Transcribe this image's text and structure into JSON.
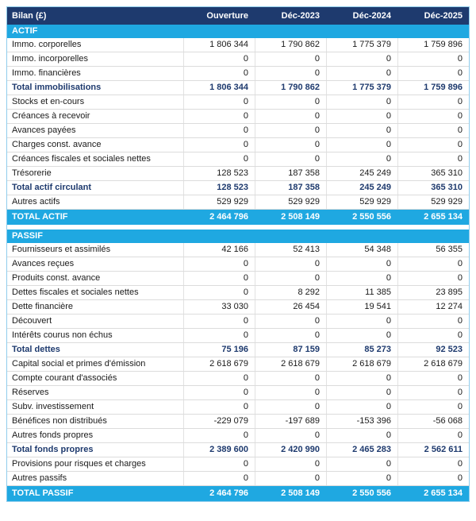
{
  "chart_data": {
    "type": "table",
    "title": "Bilan (£)",
    "columns": [
      "Ouverture",
      "Déc-2023",
      "Déc-2024",
      "Déc-2025"
    ],
    "sections": [
      {
        "name": "ACTIF",
        "rows": [
          {
            "label": "Immo. corporelles",
            "values": [
              "1 806 344",
              "1 790 862",
              "1 775 379",
              "1 759 896"
            ],
            "bold": false
          },
          {
            "label": "Immo. incorporelles",
            "values": [
              "0",
              "0",
              "0",
              "0"
            ],
            "bold": false
          },
          {
            "label": "Immo. financières",
            "values": [
              "0",
              "0",
              "0",
              "0"
            ],
            "bold": false
          },
          {
            "label": "Total immobilisations",
            "values": [
              "1 806 344",
              "1 790 862",
              "1 775 379",
              "1 759 896"
            ],
            "bold": true
          },
          {
            "label": "Stocks et en-cours",
            "values": [
              "0",
              "0",
              "0",
              "0"
            ],
            "bold": false
          },
          {
            "label": "Créances à recevoir",
            "values": [
              "0",
              "0",
              "0",
              "0"
            ],
            "bold": false
          },
          {
            "label": "Avances payées",
            "values": [
              "0",
              "0",
              "0",
              "0"
            ],
            "bold": false
          },
          {
            "label": "Charges const. avance",
            "values": [
              "0",
              "0",
              "0",
              "0"
            ],
            "bold": false
          },
          {
            "label": "Créances fiscales et sociales nettes",
            "values": [
              "0",
              "0",
              "0",
              "0"
            ],
            "bold": false
          },
          {
            "label": "Trésorerie",
            "values": [
              "128 523",
              "187 358",
              "245 249",
              "365 310"
            ],
            "bold": false
          },
          {
            "label": "Total actif circulant",
            "values": [
              "128 523",
              "187 358",
              "245 249",
              "365 310"
            ],
            "bold": true
          },
          {
            "label": "Autres actifs",
            "values": [
              "529 929",
              "529 929",
              "529 929",
              "529 929"
            ],
            "bold": false
          }
        ],
        "total": {
          "label": "TOTAL ACTIF",
          "values": [
            "2 464 796",
            "2 508 149",
            "2 550 556",
            "2 655 134"
          ]
        }
      },
      {
        "name": "PASSIF",
        "rows": [
          {
            "label": "Fournisseurs et assimilés",
            "values": [
              "42 166",
              "52 413",
              "54 348",
              "56 355"
            ],
            "bold": false
          },
          {
            "label": "Avances reçues",
            "values": [
              "0",
              "0",
              "0",
              "0"
            ],
            "bold": false
          },
          {
            "label": "Produits const. avance",
            "values": [
              "0",
              "0",
              "0",
              "0"
            ],
            "bold": false
          },
          {
            "label": "Dettes fiscales et sociales nettes",
            "values": [
              "0",
              "8 292",
              "11 385",
              "23 895"
            ],
            "bold": false
          },
          {
            "label": "Dette financière",
            "values": [
              "33 030",
              "26 454",
              "19 541",
              "12 274"
            ],
            "bold": false
          },
          {
            "label": "Découvert",
            "values": [
              "0",
              "0",
              "0",
              "0"
            ],
            "bold": false
          },
          {
            "label": "Intérêts courus non échus",
            "values": [
              "0",
              "0",
              "0",
              "0"
            ],
            "bold": false
          },
          {
            "label": "Total dettes",
            "values": [
              "75 196",
              "87 159",
              "85 273",
              "92 523"
            ],
            "bold": true
          },
          {
            "label": "Capital social et primes d'émission",
            "values": [
              "2 618 679",
              "2 618 679",
              "2 618 679",
              "2 618 679"
            ],
            "bold": false
          },
          {
            "label": "Compte courant d'associés",
            "values": [
              "0",
              "0",
              "0",
              "0"
            ],
            "bold": false
          },
          {
            "label": "Réserves",
            "values": [
              "0",
              "0",
              "0",
              "0"
            ],
            "bold": false
          },
          {
            "label": "Subv. investissement",
            "values": [
              "0",
              "0",
              "0",
              "0"
            ],
            "bold": false
          },
          {
            "label": "Bénéfices non distribués",
            "values": [
              "-229 079",
              "-197 689",
              "-153 396",
              "-56 068"
            ],
            "bold": false
          },
          {
            "label": "Autres fonds propres",
            "values": [
              "0",
              "0",
              "0",
              "0"
            ],
            "bold": false
          },
          {
            "label": "Total fonds propres",
            "values": [
              "2 389 600",
              "2 420 990",
              "2 465 283",
              "2 562 611"
            ],
            "bold": true
          },
          {
            "label": "Provisions pour risques et charges",
            "values": [
              "0",
              "0",
              "0",
              "0"
            ],
            "bold": false
          },
          {
            "label": "Autres passifs",
            "values": [
              "0",
              "0",
              "0",
              "0"
            ],
            "bold": false
          }
        ],
        "total": {
          "label": "TOTAL PASSIF",
          "values": [
            "2 464 796",
            "2 508 149",
            "2 550 556",
            "2 655 134"
          ]
        }
      }
    ],
    "layout": {
      "grid": false,
      "legend_position": "none"
    }
  },
  "colors": {
    "header_bg": "#1e3a6e",
    "section_bg": "#1fa8e1",
    "total_bg": "#1fa8e1",
    "bold_text": "#1e3a6e",
    "body_text": "#1a1a1a"
  }
}
